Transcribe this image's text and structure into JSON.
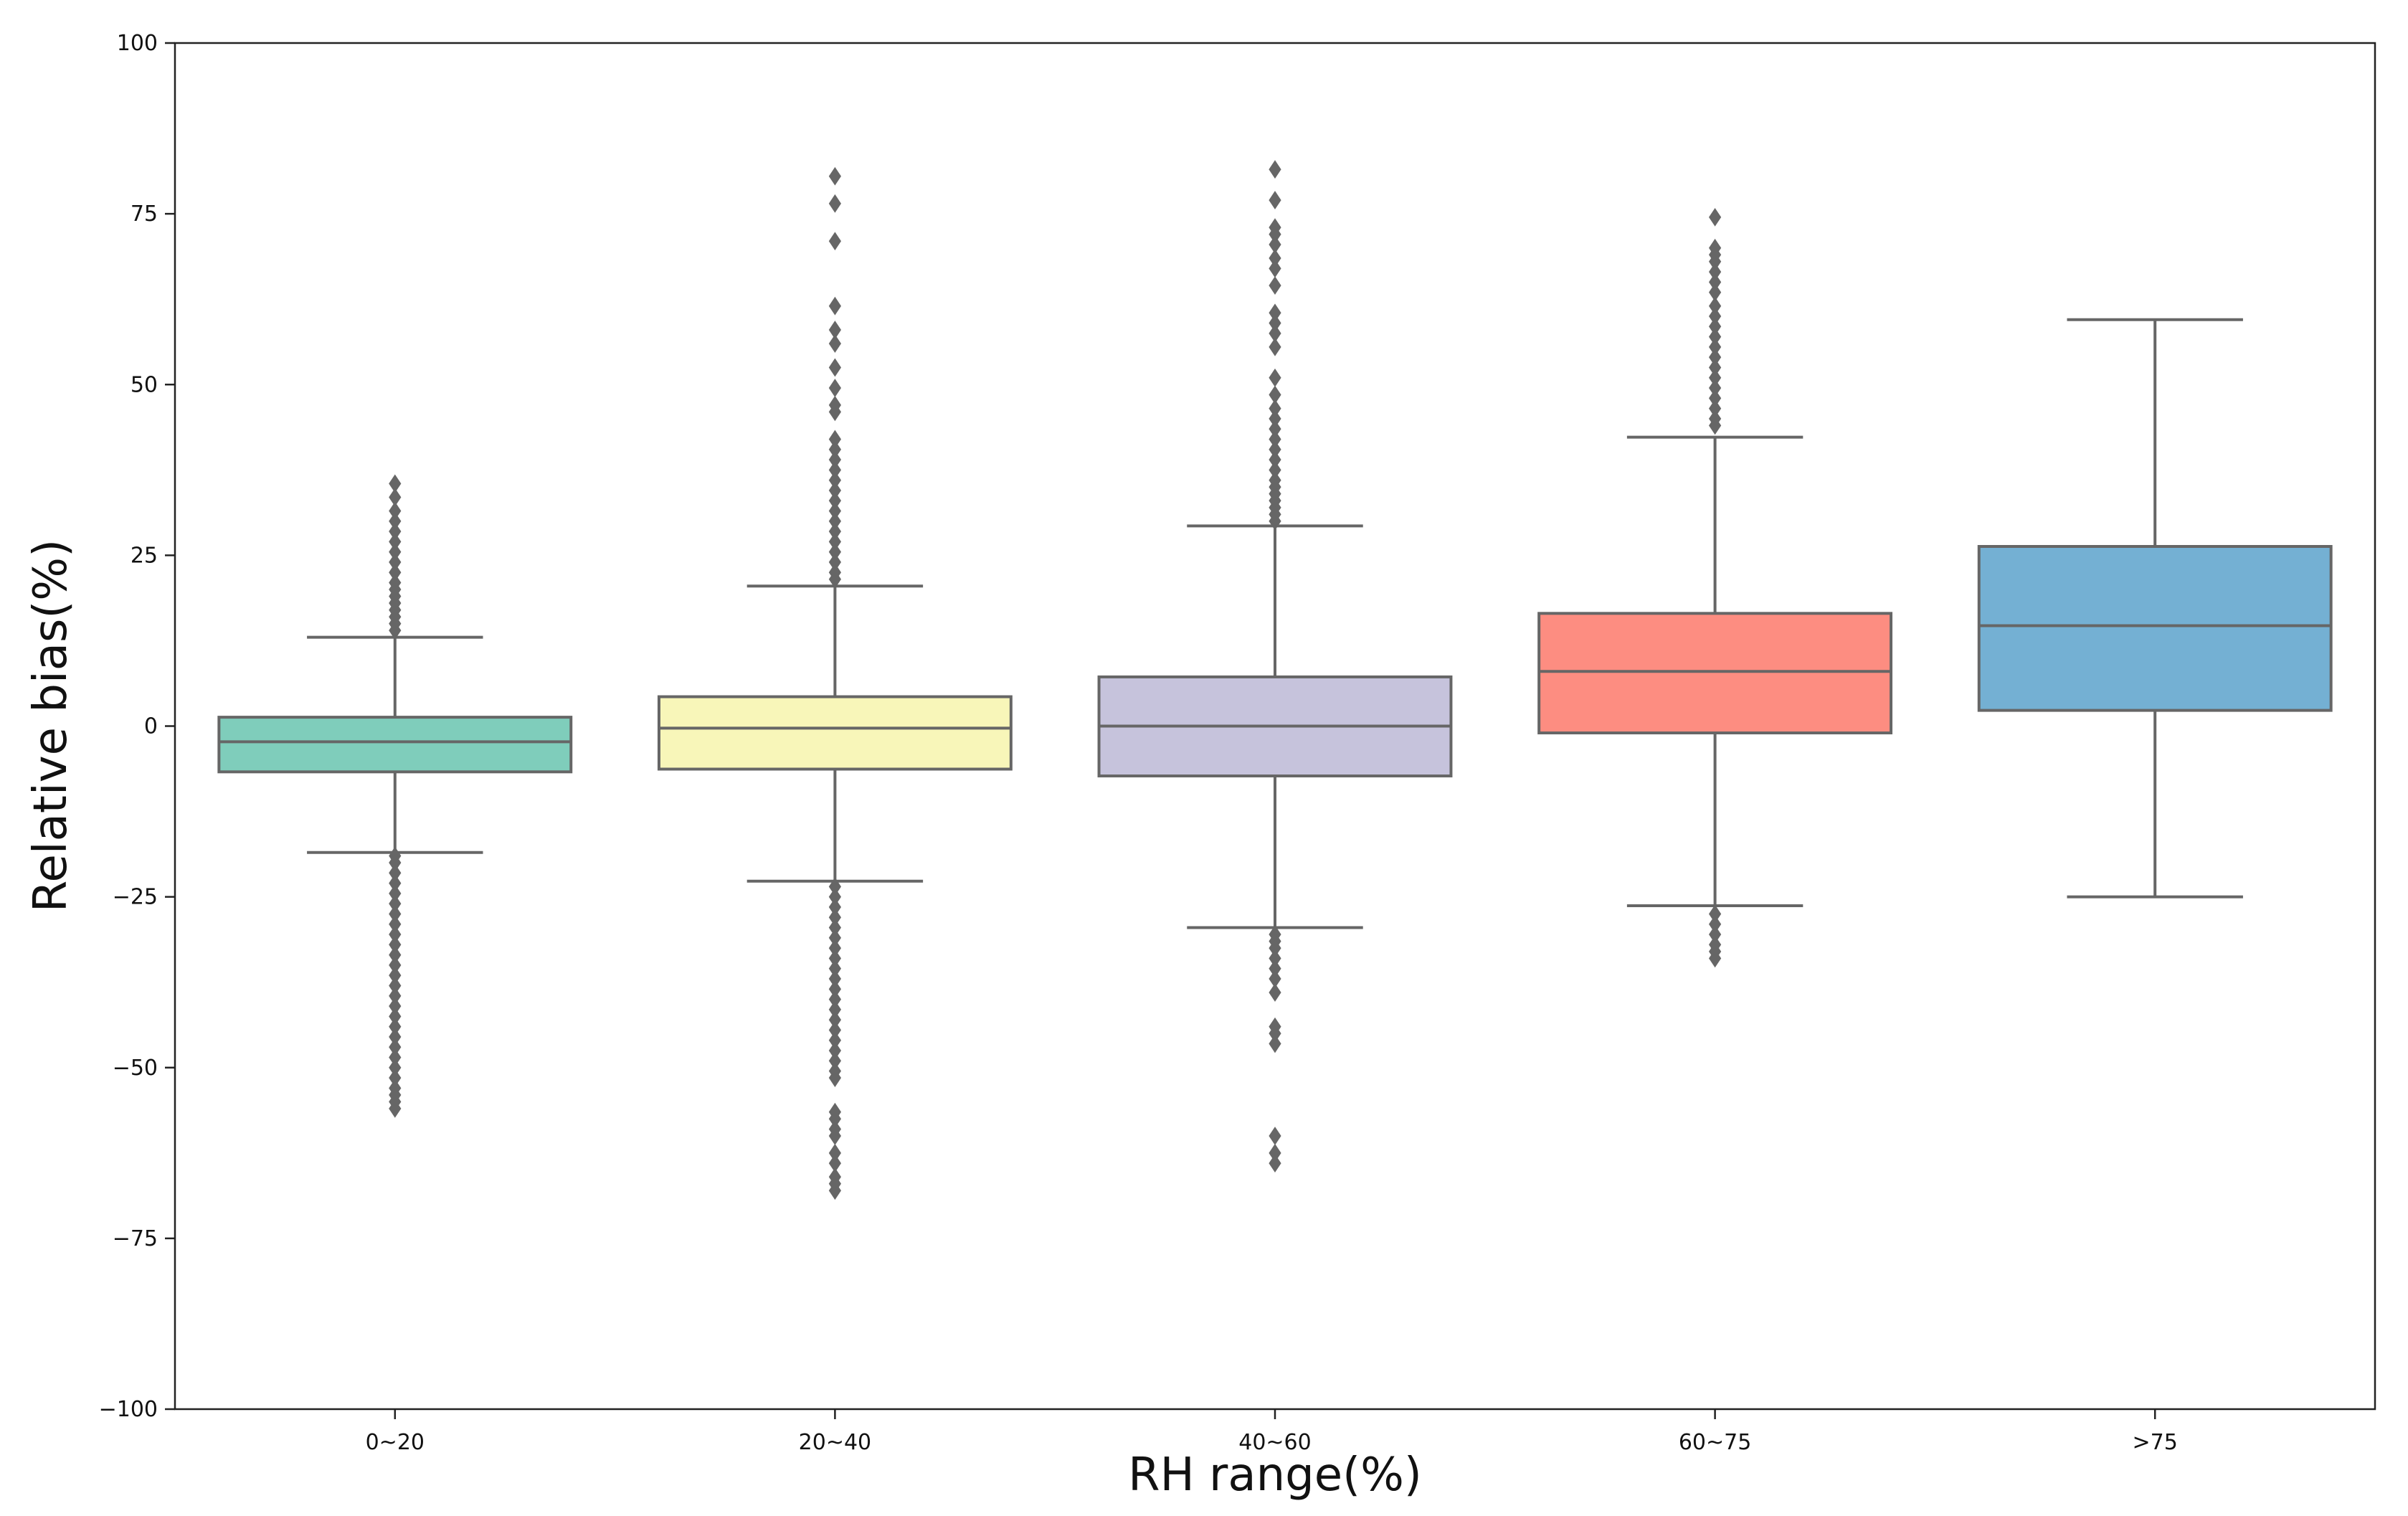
{
  "chart_data": {
    "type": "box",
    "title": "",
    "xlabel": "RH range(%)",
    "ylabel": "Relative bias(%)",
    "ylim": [
      -100,
      100
    ],
    "yticks": [
      -100,
      -75,
      -50,
      -25,
      0,
      25,
      50,
      75,
      100
    ],
    "ytick_labels": [
      "−100",
      "−75",
      "−50",
      "−25",
      "0",
      "25",
      "50",
      "75",
      "100"
    ],
    "grid": false,
    "legend": "none",
    "categories": [
      "0~20",
      "20~40",
      "40~60",
      "60~75",
      ">75"
    ],
    "boxes": [
      {
        "category": "0~20",
        "color": "#7fcdbb",
        "whisker_low": -18.5,
        "q1": -6.7,
        "median": -2.3,
        "q3": 1.3,
        "whisker_high": 13.0,
        "outliers": [
          35.5,
          33.5,
          31.5,
          30.0,
          28.5,
          27.0,
          25.5,
          24.0,
          22.5,
          21.0,
          20.0,
          19.0,
          18.0,
          17.0,
          16.0,
          15.0,
          14.0,
          -19.0,
          -20.0,
          -21.5,
          -23.0,
          -24.5,
          -26.0,
          -27.5,
          -29.0,
          -30.5,
          -32.0,
          -33.5,
          -35.0,
          -36.5,
          -38.0,
          -39.5,
          -41.0,
          -42.5,
          -44.0,
          -45.5,
          -47.0,
          -48.5,
          -50.0,
          -51.5,
          -53.0,
          -54.0,
          -55.0,
          -56.0
        ]
      },
      {
        "category": "20~40",
        "color": "#f8f6b9",
        "whisker_low": -22.7,
        "q1": -6.3,
        "median": -0.3,
        "q3": 4.3,
        "whisker_high": 20.5,
        "outliers": [
          80.5,
          76.5,
          71.0,
          61.5,
          58.0,
          56.0,
          52.5,
          49.5,
          47.0,
          46.0,
          42.0,
          40.5,
          39.0,
          37.5,
          36.0,
          34.5,
          33.0,
          31.5,
          30.0,
          28.5,
          27.0,
          25.5,
          24.0,
          22.5,
          21.5,
          -23.5,
          -25.0,
          -26.5,
          -28.0,
          -29.5,
          -31.0,
          -32.5,
          -34.0,
          -35.5,
          -37.0,
          -38.5,
          -40.0,
          -41.5,
          -43.0,
          -44.5,
          -46.0,
          -47.5,
          -49.0,
          -50.5,
          -51.5,
          -56.5,
          -57.5,
          -59.0,
          -60.0,
          -62.5,
          -64.0,
          -66.0,
          -67.0,
          -68.0
        ]
      },
      {
        "category": "40~60",
        "color": "#c6c3dc",
        "whisker_low": -29.5,
        "q1": -7.3,
        "median": 0.0,
        "q3": 7.2,
        "whisker_high": 29.3,
        "outliers": [
          81.5,
          77.0,
          73.0,
          72.0,
          70.5,
          68.5,
          67.0,
          64.5,
          60.5,
          59.0,
          57.5,
          55.5,
          51.0,
          48.5,
          46.5,
          45.0,
          43.5,
          42.0,
          40.5,
          39.0,
          37.5,
          36.0,
          35.0,
          34.0,
          33.0,
          32.0,
          31.0,
          30.0,
          -30.5,
          -31.5,
          -32.5,
          -34.0,
          -35.5,
          -37.0,
          -39.0,
          -44.0,
          -45.0,
          -46.5,
          -60.0,
          -62.5,
          -64.0
        ]
      },
      {
        "category": "60~75",
        "color": "#fd8d81",
        "whisker_low": -26.3,
        "q1": -1.0,
        "median": 8.0,
        "q3": 16.5,
        "whisker_high": 42.3,
        "outliers": [
          74.5,
          70.0,
          69.0,
          68.0,
          66.5,
          65.0,
          63.5,
          61.5,
          60.0,
          58.5,
          57.0,
          55.5,
          54.0,
          52.5,
          51.0,
          49.5,
          48.0,
          46.5,
          45.0,
          44.0,
          -27.5,
          -29.0,
          -30.5,
          -32.0,
          -33.0,
          -34.0
        ]
      },
      {
        "category": ">75",
        "color": "#74b0d3",
        "whisker_low": -25.0,
        "q1": 2.3,
        "median": 14.7,
        "q3": 26.3,
        "whisker_high": 59.5,
        "outliers": []
      }
    ]
  }
}
